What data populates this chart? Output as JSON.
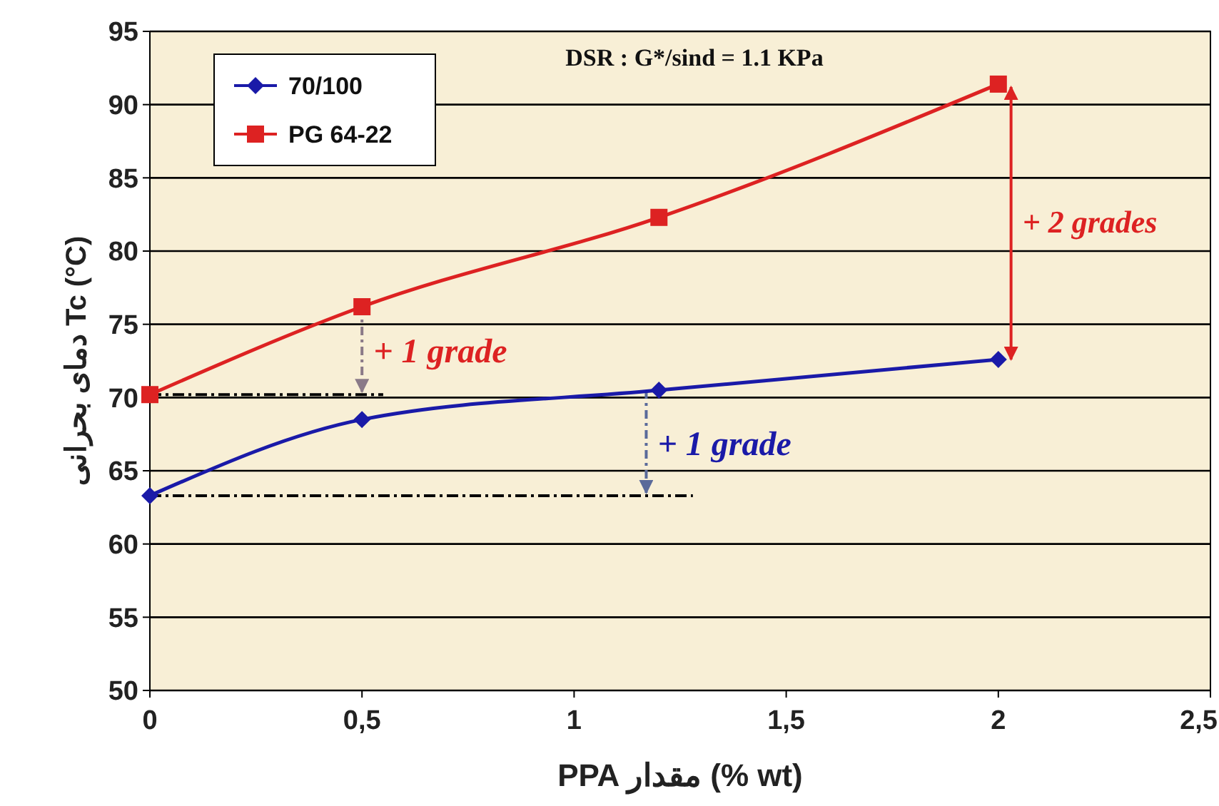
{
  "chart_data": {
    "type": "line",
    "xlabel": "PPA مقدار (% wt)",
    "ylabel": "دمای بحرانی Tc (°C)",
    "x": [
      0,
      0.5,
      1.2,
      2
    ],
    "series": [
      {
        "name": "70/100",
        "color": "#1a1aa8",
        "marker": "diamond",
        "values": [
          63.3,
          68.5,
          70.5,
          72.6
        ]
      },
      {
        "name": "PG 64-22",
        "color": "#dd2222",
        "marker": "square",
        "values": [
          70.2,
          76.2,
          82.3,
          91.4
        ]
      }
    ],
    "xlim": [
      0,
      2.5
    ],
    "xticks": [
      0,
      {
        "value": 0.5,
        "label": "0,5"
      },
      1,
      {
        "value": 1.5,
        "label": "1,5"
      },
      2,
      {
        "value": 2.5,
        "label": "2,5"
      }
    ],
    "ylim": [
      50,
      95
    ],
    "yticks": [
      50,
      55,
      60,
      65,
      70,
      75,
      80,
      85,
      90,
      95
    ],
    "grid": "y",
    "legend": "top left",
    "line_style": "solid",
    "annotations": [
      "DSR : G*/sind = 1.1 KPa",
      {
        "text": "+ 1 grade",
        "x": 0.5,
        "y": 76.2
      },
      "+ 2 grades",
      "+ 1 grade"
    ]
  }
}
